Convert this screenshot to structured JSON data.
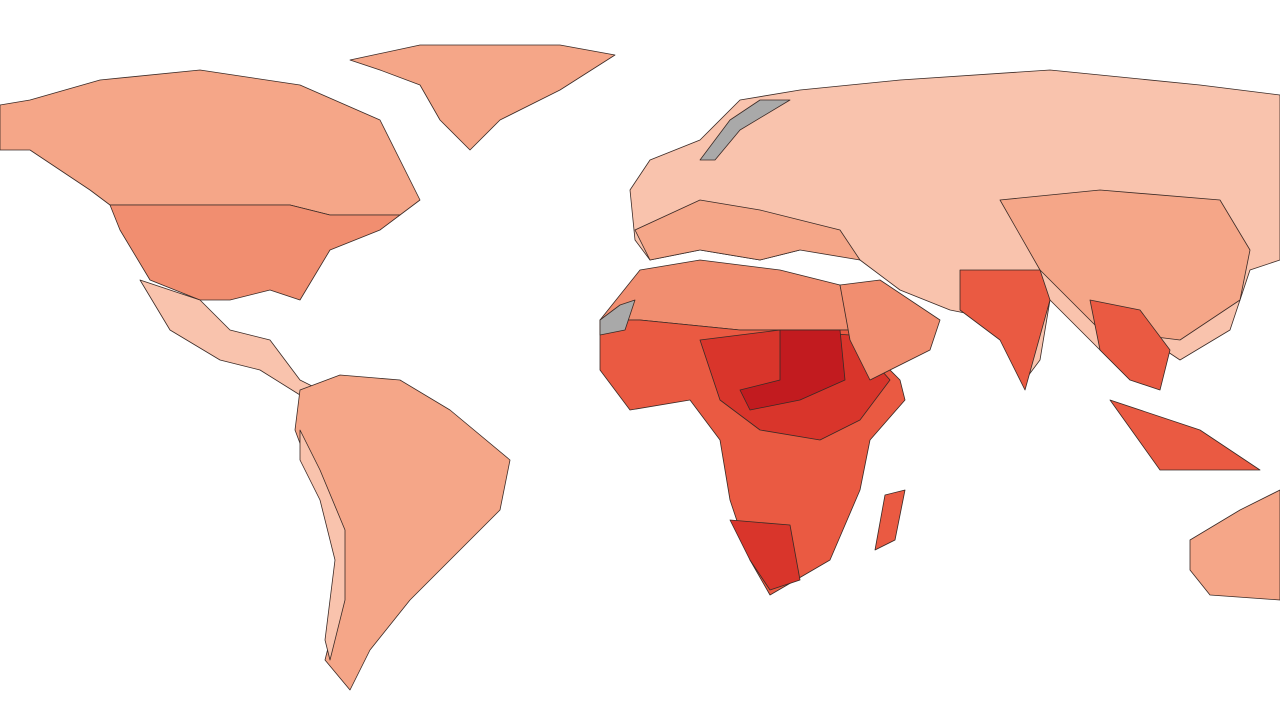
{
  "map": {
    "colors": [
      "#f9c3ad",
      "#f5a688",
      "#f18e70",
      "#ea5a42",
      "#d9352b",
      "#c21b1f",
      "#a9a9a9"
    ],
    "background": "#ffffff",
    "border": "#3a2a26"
  }
}
